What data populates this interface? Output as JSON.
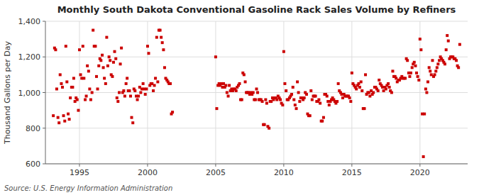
{
  "chart_data": {
    "type": "scatter",
    "title": "Monthly South Dakota Conventional Gasoline Rack Sales Volume by Refiners",
    "y_label": "Thousand Gallons per Day",
    "source": "Source: U.S. Energy Information Administration",
    "color": "#cc0000",
    "marker": "square",
    "grid": true,
    "xlim": [
      1992.5,
      2023.5
    ],
    "xticks": [
      1995,
      2000,
      2005,
      2010,
      2015,
      2020
    ],
    "ylim": [
      600,
      1400
    ],
    "yticks": [
      600,
      800,
      {
        "value": 1000,
        "label": "1,000"
      },
      {
        "value": 1200,
        "label": "1,200"
      },
      {
        "value": 1400,
        "label": "1,400"
      }
    ],
    "x": [
      1993.08,
      1993.17,
      1993.25,
      1993.33,
      1993.42,
      1993.5,
      1993.58,
      1993.67,
      1993.75,
      1993.83,
      1993.92,
      1994,
      1994.08,
      1994.17,
      1994.25,
      1994.33,
      1994.42,
      1994.5,
      1994.58,
      1994.67,
      1994.75,
      1994.83,
      1994.92,
      1995,
      1995.08,
      1995.17,
      1995.25,
      1995.33,
      1995.42,
      1995.5,
      1995.58,
      1995.67,
      1995.75,
      1995.83,
      1995.92,
      1996,
      1996.08,
      1996.17,
      1996.25,
      1996.33,
      1996.42,
      1996.5,
      1996.58,
      1996.67,
      1996.75,
      1996.83,
      1996.92,
      1997,
      1997.08,
      1997.17,
      1997.25,
      1997.33,
      1997.42,
      1997.5,
      1997.58,
      1997.67,
      1997.75,
      1997.83,
      1997.92,
      1998,
      1998.08,
      1998.17,
      1998.25,
      1998.33,
      1998.42,
      1998.5,
      1998.58,
      1998.67,
      1998.75,
      1998.83,
      1998.92,
      1999,
      1999.08,
      1999.17,
      1999.25,
      1999.33,
      1999.42,
      1999.5,
      1999.58,
      1999.67,
      1999.75,
      1999.83,
      1999.92,
      2000,
      2000.08,
      2000.17,
      2000.25,
      2000.33,
      2000.42,
      2000.5,
      2000.58,
      2000.67,
      2000.75,
      2000.83,
      2000.92,
      2001,
      2001.08,
      2001.17,
      2001.25,
      2001.33,
      2001.42,
      2001.5,
      2001.58,
      2001.67,
      2001.75,
      2001.83,
      2005,
      2005.08,
      2005.17,
      2005.25,
      2005.33,
      2005.42,
      2005.5,
      2005.58,
      2005.67,
      2005.75,
      2005.83,
      2005.92,
      2006,
      2006.08,
      2006.17,
      2006.25,
      2006.33,
      2006.42,
      2006.5,
      2006.58,
      2006.67,
      2006.75,
      2006.83,
      2006.92,
      2007,
      2007.08,
      2007.17,
      2007.25,
      2007.33,
      2007.42,
      2007.5,
      2007.58,
      2007.67,
      2007.75,
      2007.83,
      2007.92,
      2008,
      2008.08,
      2008.17,
      2008.25,
      2008.33,
      2008.42,
      2008.5,
      2008.58,
      2008.67,
      2008.75,
      2008.83,
      2008.92,
      2009,
      2009.08,
      2009.17,
      2009.25,
      2009.33,
      2009.42,
      2009.5,
      2009.58,
      2009.67,
      2009.75,
      2009.83,
      2009.92,
      2010,
      2010.08,
      2010.17,
      2010.25,
      2010.33,
      2010.42,
      2010.5,
      2010.58,
      2010.67,
      2010.75,
      2010.83,
      2010.92,
      2011,
      2011.08,
      2011.17,
      2011.25,
      2011.33,
      2011.42,
      2011.5,
      2011.58,
      2011.67,
      2011.75,
      2011.83,
      2011.92,
      2012,
      2012.08,
      2012.17,
      2012.25,
      2012.33,
      2012.42,
      2012.5,
      2012.58,
      2012.67,
      2012.75,
      2012.83,
      2012.92,
      2013,
      2013.08,
      2013.17,
      2013.25,
      2013.33,
      2013.42,
      2013.5,
      2013.58,
      2013.67,
      2013.75,
      2013.83,
      2013.92,
      2014,
      2014.08,
      2014.17,
      2014.25,
      2014.33,
      2014.42,
      2014.5,
      2014.58,
      2014.67,
      2014.75,
      2014.83,
      2014.92,
      2015,
      2015.08,
      2015.17,
      2015.25,
      2015.33,
      2015.42,
      2015.5,
      2015.58,
      2015.67,
      2015.75,
      2015.83,
      2015.92,
      2016,
      2016.08,
      2016.17,
      2016.25,
      2016.33,
      2016.42,
      2016.5,
      2016.58,
      2016.67,
      2016.75,
      2016.83,
      2016.92,
      2017,
      2017.08,
      2017.17,
      2017.25,
      2017.33,
      2017.42,
      2017.5,
      2017.58,
      2017.67,
      2017.75,
      2017.83,
      2017.92,
      2018,
      2018.08,
      2018.17,
      2018.25,
      2018.33,
      2018.42,
      2018.5,
      2018.58,
      2018.67,
      2018.75,
      2018.83,
      2018.92,
      2019,
      2019.08,
      2019.17,
      2019.25,
      2019.33,
      2019.42,
      2019.5,
      2019.58,
      2019.67,
      2019.75,
      2019.83,
      2019.92,
      2020,
      2020.08,
      2020.17,
      2020.25,
      2020.33,
      2020.42,
      2020.5,
      2020.58,
      2020.67,
      2020.75,
      2020.83,
      2020.92,
      2021,
      2021.08,
      2021.17,
      2021.25,
      2021.33,
      2021.42,
      2021.5,
      2021.58,
      2021.67,
      2021.75,
      2021.83,
      2021.92,
      2022,
      2022.08,
      2022.17,
      2022.25,
      2022.33,
      2022.42,
      2022.5,
      2022.58,
      2022.67,
      2022.75,
      2022.83,
      2022.92
    ],
    "values": [
      870,
      1250,
      1240,
      1020,
      860,
      830,
      1100,
      1050,
      1030,
      870,
      840,
      1260,
      1060,
      880,
      850,
      970,
      1030,
      1030,
      1080,
      950,
      970,
      960,
      900,
      1240,
      1100,
      1080,
      1260,
      1080,
      960,
      980,
      1150,
      1120,
      1020,
      960,
      1000,
      1350,
      1260,
      1260,
      1090,
      1020,
      1150,
      1190,
      1180,
      1210,
      1140,
      1080,
      1050,
      1310,
      1150,
      1200,
      1180,
      1100,
      1090,
      1170,
      1230,
      1190,
      970,
      950,
      1000,
      1160,
      1250,
      1000,
      1010,
      980,
      1050,
      1080,
      1010,
      1010,
      980,
      860,
      830,
      1020,
      1010,
      980,
      960,
      980,
      1030,
      1000,
      1020,
      1050,
      1020,
      990,
      1020,
      1260,
      1220,
      1040,
      1050,
      1050,
      1010,
      1040,
      1080,
      1310,
      1060,
      1350,
      1350,
      1310,
      1280,
      1240,
      1140,
      1080,
      1070,
      1060,
      1050,
      1050,
      880,
      890,
      1200,
      910,
      1040,
      1050,
      1040,
      1050,
      1030,
      1050,
      1030,
      1040,
      1000,
      980,
      1040,
      1010,
      1020,
      1010,
      1020,
      1020,
      1010,
      1030,
      1040,
      1050,
      960,
      960,
      1110,
      1100,
      1060,
      1000,
      1000,
      1000,
      990,
      1000,
      990,
      1000,
      960,
      960,
      1020,
      1000,
      960,
      960,
      960,
      950,
      820,
      820,
      960,
      940,
      810,
      800,
      950,
      950,
      970,
      960,
      970,
      970,
      960,
      980,
      970,
      960,
      940,
      930,
      1230,
      1050,
      1010,
      960,
      960,
      970,
      980,
      990,
      1030,
      960,
      930,
      910,
      1060,
      1000,
      950,
      970,
      970,
      960,
      970,
      1000,
      990,
      880,
      870,
      870,
      1010,
      960,
      980,
      980,
      980,
      950,
      950,
      960,
      940,
      840,
      840,
      860,
      990,
      990,
      980,
      950,
      930,
      950,
      960,
      970,
      960,
      950,
      940,
      950,
      1050,
      1010,
      1000,
      990,
      970,
      990,
      980,
      980,
      980,
      980,
      970,
      950,
      1110,
      1050,
      1040,
      1030,
      1020,
      1040,
      1050,
      1030,
      1060,
      1010,
      910,
      910,
      1100,
      990,
      1000,
      1000,
      980,
      1010,
      990,
      1000,
      1030,
      1030,
      1020,
      1010,
      1070,
      1050,
      1040,
      1030,
      1010,
      1030,
      1020,
      1040,
      1050,
      1030,
      1010,
      1000,
      1120,
      1090,
      1090,
      1080,
      1060,
      1070,
      1070,
      1080,
      1090,
      1080,
      1080,
      1080,
      1190,
      1180,
      1110,
      1090,
      1110,
      1140,
      1160,
      1170,
      1150,
      1110,
      1090,
      1070,
      1300,
      1240,
      880,
      640,
      880,
      1020,
      1000,
      1060,
      1140,
      1120,
      1100,
      1180,
      1090,
      1100,
      1120,
      1140,
      1160,
      1180,
      1200,
      1190,
      1180,
      1170,
      1160,
      1240,
      1320,
      1290,
      1190,
      1200,
      1200,
      1200,
      1190,
      1190,
      1180,
      1150,
      1140,
      1270
    ]
  }
}
